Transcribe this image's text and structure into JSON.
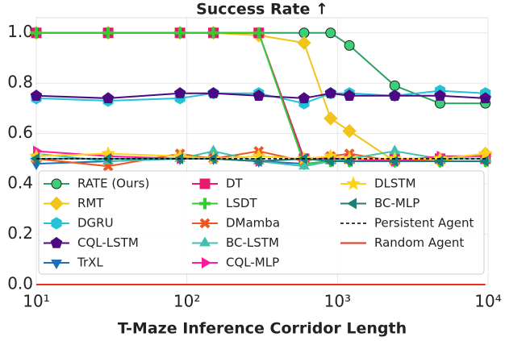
{
  "chart_data": {
    "type": "line",
    "title": "Success Rate ↑",
    "x_label": "T-Maze Inference Corridor Length",
    "log_x": true,
    "grid": true,
    "x": [
      10,
      30,
      90,
      150,
      300,
      600,
      900,
      1200,
      2400,
      4800,
      9600
    ],
    "xlim": [
      10,
      10000
    ],
    "xticks": [
      {
        "value": 10,
        "label": "10¹"
      },
      {
        "value": 100,
        "label": "10²"
      },
      {
        "value": 1000,
        "label": "10³"
      },
      {
        "value": 10000,
        "label": "10⁴"
      }
    ],
    "ylim": [
      0,
      1.06
    ],
    "yticks": [
      {
        "value": 0,
        "label": "0.0"
      },
      {
        "value": 0.2,
        "label": "0.2"
      },
      {
        "value": 0.4,
        "label": "0.4"
      },
      {
        "value": 0.6,
        "label": "0.6"
      },
      {
        "value": 0.8,
        "label": "0.8"
      },
      {
        "value": 1,
        "label": "1.0"
      }
    ],
    "legend": "lower center",
    "series": [
      {
        "name": "RATE (Ours)",
        "color": "#2ca25f",
        "marker": "circle",
        "values": [
          1,
          1,
          1,
          1,
          1,
          1,
          1,
          0.95,
          0.79,
          0.72,
          0.72
        ]
      },
      {
        "name": "RMT",
        "color": "#f0c419",
        "marker": "diamond",
        "values": [
          1,
          1,
          1,
          1,
          0.99,
          0.96,
          0.66,
          0.61,
          0.49,
          0.49,
          0.52
        ]
      },
      {
        "name": "DGRU",
        "color": "#22c3d6",
        "marker": "hexagon",
        "values": [
          0.74,
          0.73,
          0.74,
          0.76,
          0.76,
          0.72,
          0.76,
          0.76,
          0.75,
          0.77,
          0.76
        ]
      },
      {
        "name": "CQL-LSTM",
        "color": "#4b0a82",
        "marker": "pentagon",
        "values": [
          0.75,
          0.74,
          0.76,
          0.76,
          0.75,
          0.74,
          0.76,
          0.75,
          0.75,
          0.75,
          0.74
        ]
      },
      {
        "name": "TrXL",
        "color": "#1f6fb4",
        "marker": "triangle-down",
        "values": [
          0.48,
          0.49,
          0.5,
          0.5,
          0.49,
          0.48,
          0.49,
          0.49,
          0.49,
          0.49,
          0.49
        ]
      },
      {
        "name": "DT",
        "color": "#e6196e",
        "marker": "square",
        "values": [
          1,
          1,
          1,
          1,
          1,
          0.5,
          0.5,
          0.5,
          0.5,
          0.5,
          0.5
        ]
      },
      {
        "name": "LSDT",
        "color": "#33cc33",
        "marker": "plus",
        "values": [
          1,
          1,
          1,
          1,
          1,
          0.48,
          0.49,
          0.49,
          0.49,
          0.49,
          0.49
        ]
      },
      {
        "name": "DMamba",
        "color": "#f0571e",
        "marker": "x",
        "values": [
          0.5,
          0.47,
          0.52,
          0.5,
          0.53,
          0.49,
          0.51,
          0.52,
          0.49,
          0.5,
          0.5
        ]
      },
      {
        "name": "BC-LSTM",
        "color": "#40c0b0",
        "marker": "triangle-up",
        "values": [
          0.52,
          0.49,
          0.5,
          0.53,
          0.49,
          0.47,
          0.49,
          0.5,
          0.53,
          0.5,
          0.5
        ]
      },
      {
        "name": "CQL-MLP",
        "color": "#ff1aa0",
        "marker": "triangle-right",
        "values": [
          0.53,
          0.51,
          0.5,
          0.5,
          0.49,
          0.5,
          0.5,
          0.5,
          0.49,
          0.51,
          0.51
        ]
      },
      {
        "name": "DLSTM",
        "color": "#ffd21a",
        "marker": "star",
        "values": [
          0.51,
          0.52,
          0.51,
          0.5,
          0.51,
          0.5,
          0.51,
          0.5,
          0.5,
          0.5,
          0.52
        ]
      },
      {
        "name": "BC-MLP",
        "color": "#1a7f7a",
        "marker": "triangle-left",
        "values": [
          0.5,
          0.5,
          0.5,
          0.5,
          0.49,
          0.5,
          0.49,
          0.49,
          0.49,
          0.49,
          0.49
        ]
      },
      {
        "name": "Persistent Agent",
        "color": "#000000",
        "dashed": true,
        "values": [
          0.5,
          0.5,
          0.5,
          0.5,
          0.5,
          0.5,
          0.5,
          0.5,
          0.5,
          0.5,
          0.5
        ]
      },
      {
        "name": "Random Agent",
        "color": "#e8301c",
        "values": [
          0,
          0,
          0,
          0,
          0,
          0,
          0,
          0,
          0,
          0,
          0
        ]
      }
    ]
  }
}
